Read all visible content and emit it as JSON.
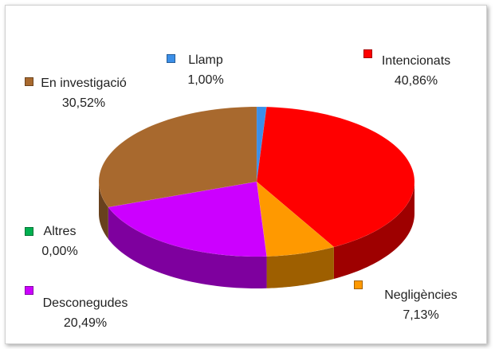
{
  "chart_data": {
    "type": "pie3d",
    "categories": [
      "Llamp",
      "Intencionats",
      "Negligències",
      "Altres",
      "Desconegudes",
      "En investigació"
    ],
    "values": [
      1.0,
      40.86,
      7.13,
      0.0,
      20.49,
      30.52
    ],
    "value_labels": [
      "1,00%",
      "40,86%",
      "7,13%",
      "0,00%",
      "20,49%",
      "30,52%"
    ],
    "colors": [
      "#3b8fe8",
      "#ff0000",
      "#ff9900",
      "#00b050",
      "#cc00ff",
      "#a8692e"
    ]
  }
}
